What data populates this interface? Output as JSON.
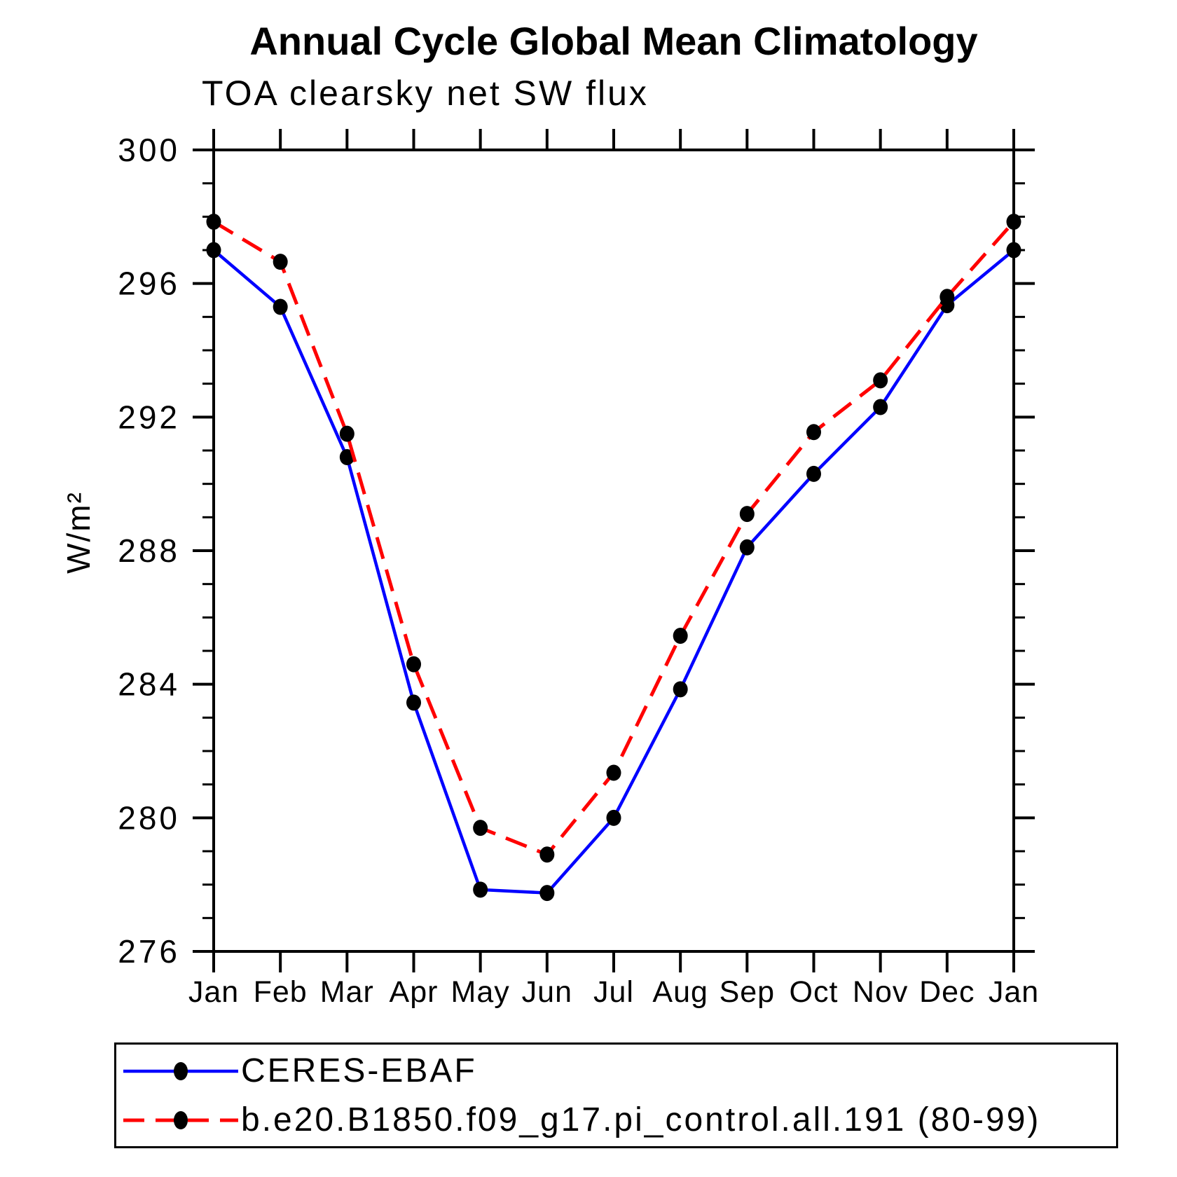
{
  "title": "Annual Cycle Global Mean Climatology",
  "subtitle": "TOA clearsky net SW flux",
  "chart_data": {
    "type": "line",
    "x_tick_labels": [
      "Jan",
      "Feb",
      "Mar",
      "Apr",
      "May",
      "Jun",
      "Jul",
      "Aug",
      "Sep",
      "Oct",
      "Nov",
      "Dec",
      "Jan"
    ],
    "ylabel": "W/m²",
    "ylim": [
      276,
      300
    ],
    "y_major_tick_step": 4,
    "y_minor_tick_step": 1,
    "y_major_tick_labels": [
      "300",
      "296",
      "292",
      "288",
      "284",
      "280",
      "276"
    ],
    "grid": false,
    "legend_position": "bottom-left-box",
    "series": [
      {
        "name": "CERES-EBAF",
        "color": "#0000ff",
        "line_style": "solid",
        "marker": "filled-circle",
        "marker_color": "#000000",
        "values": [
          297.0,
          295.3,
          290.8,
          283.45,
          277.85,
          277.75,
          280.0,
          283.85,
          288.1,
          290.3,
          292.3,
          295.35,
          297.0
        ]
      },
      {
        "name": "b.e20.B1850.f09_g17.pi_control.all.191 (80-99)",
        "color": "#ff0000",
        "line_style": "dashed",
        "marker": "filled-circle",
        "marker_color": "#000000",
        "values": [
          297.85,
          296.65,
          291.5,
          284.6,
          279.7,
          278.9,
          281.35,
          285.45,
          289.1,
          291.55,
          293.1,
          295.6,
          297.85
        ]
      }
    ]
  },
  "colors": {
    "background": "#ffffff",
    "axis": "#000000",
    "text": "#000000"
  }
}
